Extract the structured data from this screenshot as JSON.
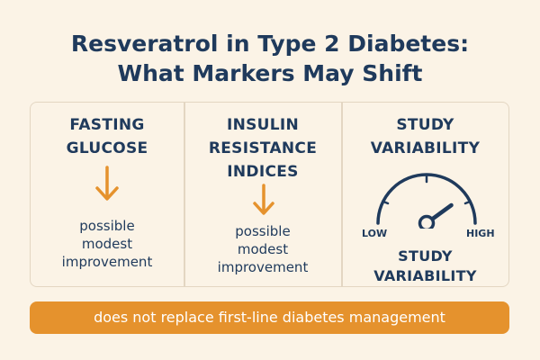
{
  "title": {
    "line1": "Resveratrol in Type 2 Diabetes:",
    "line2": "What Markers May Shift"
  },
  "columns": [
    {
      "heading": [
        "FASTING",
        "GLUCOSE"
      ],
      "icon": "arrow-down-icon",
      "note": [
        "possible",
        "modest",
        "improvement"
      ]
    },
    {
      "heading": [
        "INSULIN",
        "RESISTANCE",
        "INDICES"
      ],
      "icon": "arrow-down-icon",
      "note": [
        "possible",
        "modest",
        "improvement"
      ]
    },
    {
      "heading": [
        "STUDY",
        "VARIABILITY"
      ],
      "icon": "gauge-icon",
      "gauge": {
        "low_label": "LOW",
        "high_label": "HIGH",
        "level": 0.8
      },
      "caption": [
        "STUDY",
        "VARIABILITY"
      ]
    }
  ],
  "footer": {
    "text": "does not replace first-line diabetes management"
  },
  "colors": {
    "background": "#fbf3e6",
    "text": "#1f3a5c",
    "accent": "#e5922d",
    "border": "#e3d6c2"
  }
}
